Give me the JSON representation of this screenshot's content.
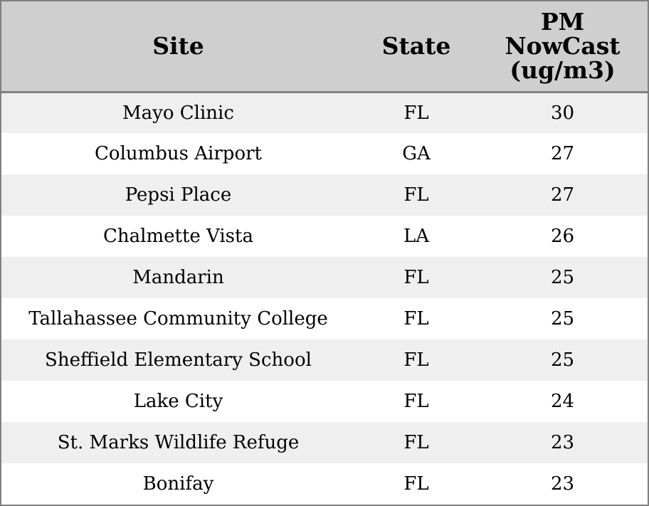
{
  "chart_data": {
    "type": "table",
    "columns": [
      "Site",
      "State",
      "PM NowCast (ug/m3)"
    ],
    "header_lines": {
      "site": [
        "Site"
      ],
      "state": [
        "State"
      ],
      "pm": [
        "PM",
        "NowCast",
        "(ug/m3)"
      ]
    },
    "rows": [
      {
        "site": "Mayo Clinic",
        "state": "FL",
        "pm": "30"
      },
      {
        "site": "Columbus Airport",
        "state": "GA",
        "pm": "27"
      },
      {
        "site": "Pepsi Place",
        "state": "FL",
        "pm": "27"
      },
      {
        "site": "Chalmette Vista",
        "state": "LA",
        "pm": "26"
      },
      {
        "site": "Mandarin",
        "state": "FL",
        "pm": "25"
      },
      {
        "site": "Tallahassee Community College",
        "state": "FL",
        "pm": "25"
      },
      {
        "site": "Sheffield Elementary School",
        "state": "FL",
        "pm": "25"
      },
      {
        "site": "Lake City",
        "state": "FL",
        "pm": "24"
      },
      {
        "site": "St. Marks Wildlife Refuge",
        "state": "FL",
        "pm": "23"
      },
      {
        "site": "Bonifay",
        "state": "FL",
        "pm": "23"
      }
    ],
    "colors": {
      "header_bg": "#cfcfcf",
      "stripe_bg": "#efefef",
      "row_bg": "#ffffff",
      "border": "#808080"
    }
  }
}
